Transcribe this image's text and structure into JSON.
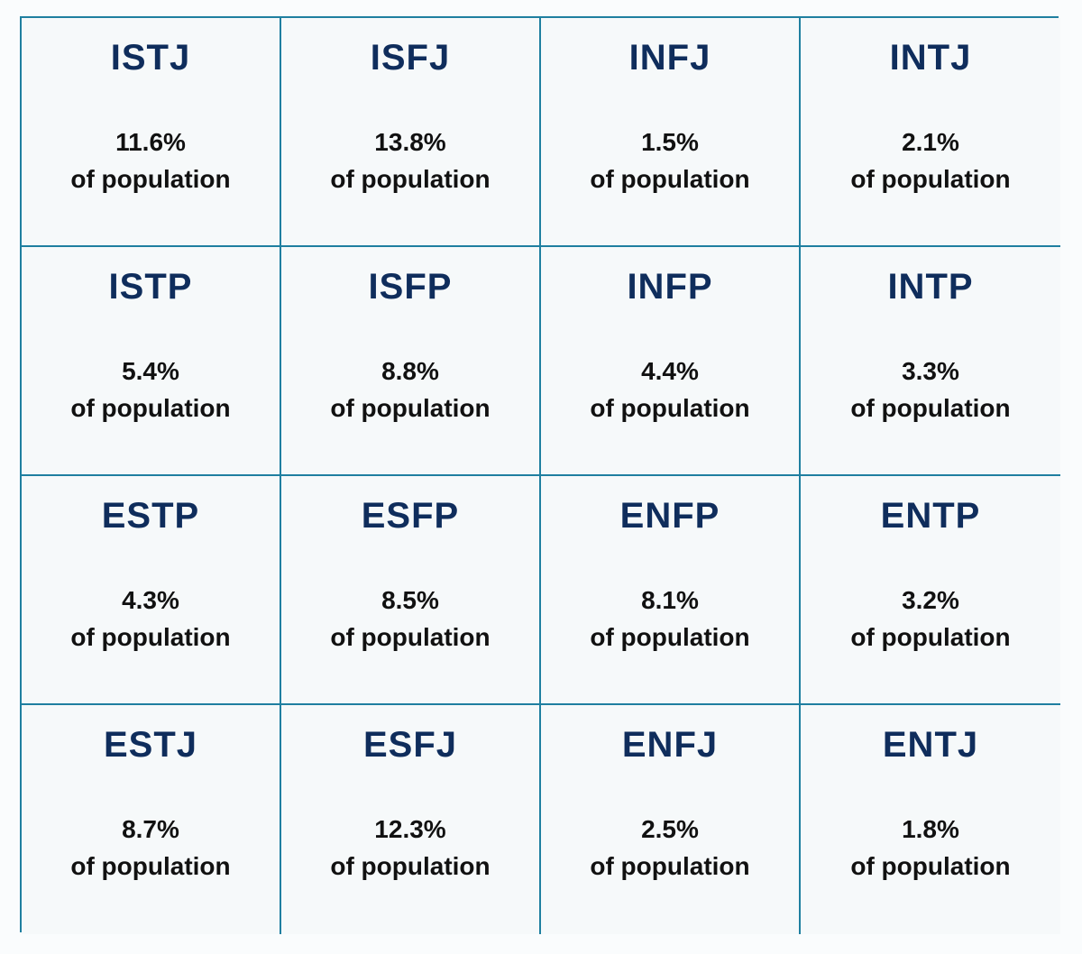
{
  "colors": {
    "type_text": "#0f2d5c",
    "value_text": "#111111",
    "grid_line": "#1f7fa0",
    "cell_background": "#f6f9fa"
  },
  "types": [
    {
      "name": "ISTJ",
      "percent": "11.6%",
      "caption": "of population"
    },
    {
      "name": "ISFJ",
      "percent": "13.8%",
      "caption": "of population"
    },
    {
      "name": "INFJ",
      "percent": "1.5%",
      "caption": "of population"
    },
    {
      "name": "INTJ",
      "percent": "2.1%",
      "caption": "of population"
    },
    {
      "name": "ISTP",
      "percent": "5.4%",
      "caption": "of population"
    },
    {
      "name": "ISFP",
      "percent": "8.8%",
      "caption": "of population"
    },
    {
      "name": "INFP",
      "percent": "4.4%",
      "caption": "of population"
    },
    {
      "name": "INTP",
      "percent": "3.3%",
      "caption": "of population"
    },
    {
      "name": "ESTP",
      "percent": "4.3%",
      "caption": "of population"
    },
    {
      "name": "ESFP",
      "percent": "8.5%",
      "caption": "of population"
    },
    {
      "name": "ENFP",
      "percent": "8.1%",
      "caption": "of population"
    },
    {
      "name": "ENTP",
      "percent": "3.2%",
      "caption": "of population"
    },
    {
      "name": "ESTJ",
      "percent": "8.7%",
      "caption": "of population"
    },
    {
      "name": "ESFJ",
      "percent": "12.3%",
      "caption": "of population"
    },
    {
      "name": "ENFJ",
      "percent": "2.5%",
      "caption": "of population"
    },
    {
      "name": "ENTJ",
      "percent": "1.8%",
      "caption": "of population"
    }
  ]
}
